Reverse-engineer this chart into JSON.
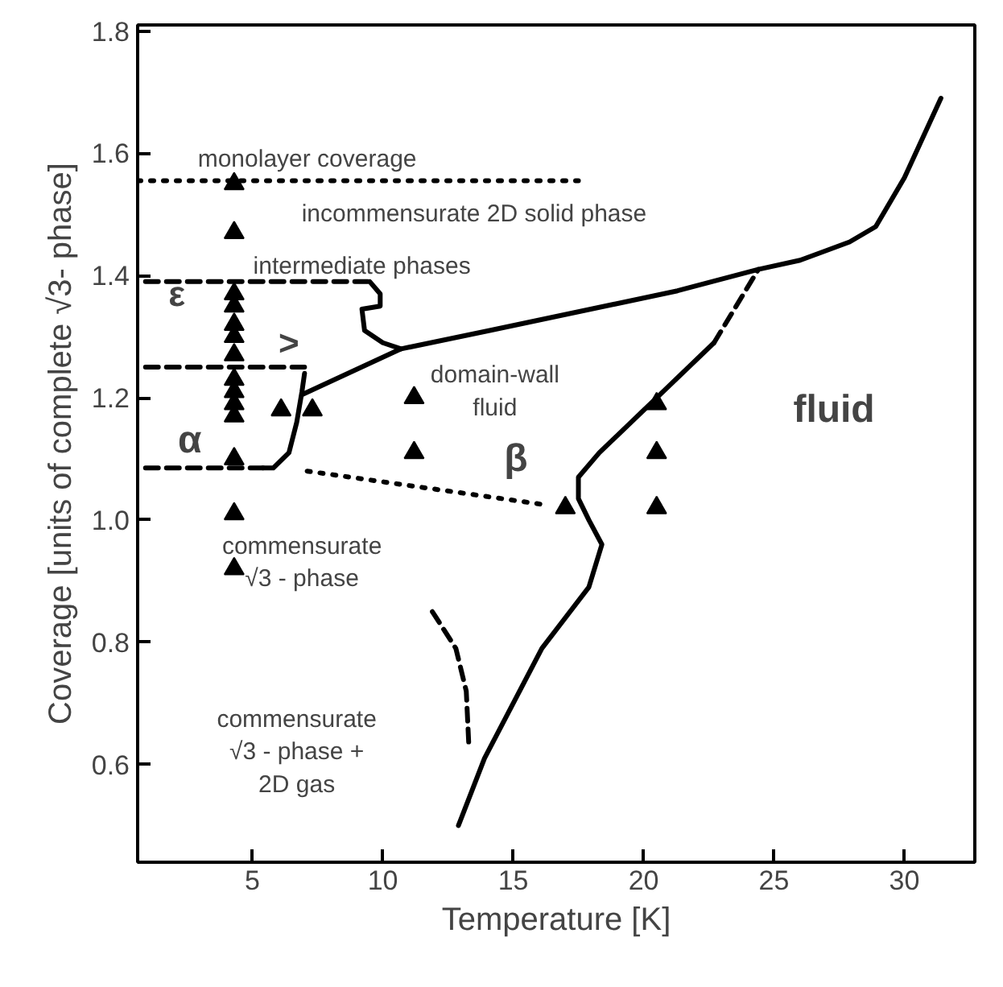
{
  "chart_data": {
    "type": "line",
    "xlabel": "Temperature [K]",
    "ylabel": "Coverage [units of complete √3- phase]",
    "xlim": [
      0.6,
      32.7
    ],
    "ylim": [
      0.44,
      1.81
    ],
    "xticks": [
      5,
      10,
      15,
      20,
      25,
      30
    ],
    "yticks": [
      0.6,
      0.8,
      {
        "value": 1.0,
        "label": "1.0"
      },
      1.2,
      1.4,
      1.6,
      1.8
    ],
    "grid": false,
    "series": [
      {
        "line_style": "solid",
        "color": "#000000",
        "x": [
          6.9,
          10.7,
          14.1,
          21.3,
          24.4,
          26,
          27.9,
          28.9,
          30,
          31.4
        ],
        "values": [
          1.205,
          1.28,
          1.31,
          1.375,
          1.41,
          1.425,
          1.455,
          1.48,
          1.56,
          1.69
        ]
      },
      {
        "line_style": "solid",
        "color": "#000000",
        "x": [
          7.0,
          6.9,
          6.7,
          6.4,
          5.8,
          5.4
        ],
        "values": [
          1.24,
          1.21,
          1.16,
          1.11,
          1.085,
          1.085
        ]
      },
      {
        "line_style": "solid",
        "color": "#000000",
        "x": [
          9.5,
          9.9,
          9.9,
          9.2,
          9.3,
          10.0,
          10.7
        ],
        "values": [
          1.39,
          1.37,
          1.35,
          1.345,
          1.31,
          1.29,
          1.28
        ]
      },
      {
        "line_style": "solid",
        "color": "#000000",
        "x": [
          12.9,
          13.9,
          16.1,
          17.9,
          18.4,
          17.9,
          17.5,
          17.5,
          18.3,
          20.5,
          22.7
        ],
        "values": [
          0.5,
          0.61,
          0.79,
          0.89,
          0.96,
          1.0,
          1.035,
          1.07,
          1.11,
          1.2,
          1.29
        ]
      },
      {
        "line_style": "dashed",
        "color": "#000000",
        "x": [
          22.7,
          24.4
        ],
        "values": [
          1.29,
          1.41
        ]
      },
      {
        "line_style": "dashed",
        "color": "#000000",
        "x": [
          11.9,
          12.8,
          13.2,
          13.3
        ],
        "values": [
          0.85,
          0.79,
          0.72,
          0.63
        ]
      },
      {
        "line_style": "dashed",
        "color": "#000000",
        "x": [
          0.9,
          9.5
        ],
        "values": [
          1.39,
          1.39
        ]
      },
      {
        "line_style": "dashed",
        "color": "#000000",
        "x": [
          0.9,
          7.0
        ],
        "values": [
          1.25,
          1.25
        ]
      },
      {
        "line_style": "dashed",
        "color": "#000000",
        "x": [
          0.9,
          5.5
        ],
        "values": [
          1.085,
          1.085
        ]
      },
      {
        "line_style": "dotted",
        "color": "#000000",
        "x": [
          0.6,
          17.5
        ],
        "values": [
          1.555,
          1.555
        ]
      },
      {
        "line_style": "dotted",
        "color": "#000000",
        "x": [
          7.1,
          16.2
        ],
        "values": [
          1.08,
          1.025
        ]
      },
      {
        "type": "scatter",
        "marker": "triangle",
        "color": "#000000",
        "x": [
          4.3,
          4.3,
          4.3,
          4.3,
          4.3,
          4.3,
          4.3,
          4.3,
          4.3,
          4.3,
          4.3,
          4.3,
          4.3,
          4.3,
          6.1,
          7.3,
          11.2,
          11.2,
          17.0,
          20.5,
          20.5,
          20.5
        ],
        "values": [
          1.55,
          1.47,
          1.37,
          1.35,
          1.32,
          1.3,
          1.27,
          1.23,
          1.21,
          1.19,
          1.17,
          1.1,
          1.01,
          0.92,
          1.18,
          1.18,
          1.2,
          1.11,
          1.02,
          1.19,
          1.11,
          1.02
        ]
      }
    ],
    "annotations": [
      "monolayer coverage",
      "incommensurate 2D solid phase",
      "intermediate phases",
      "ε",
      ">",
      "α",
      "domain-wall\nfluid",
      "β",
      "fluid",
      "commensurate\n√3 - phase",
      "commensurate\n√3 - phase +\n2D gas"
    ]
  }
}
